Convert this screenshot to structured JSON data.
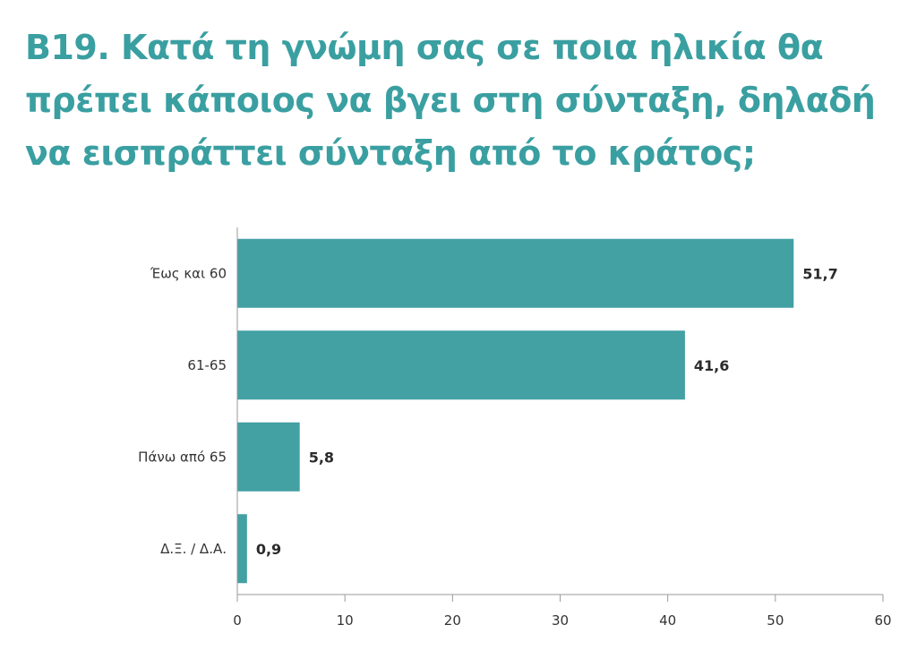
{
  "colors": {
    "title": "#3a9fa1",
    "bar": "#43a0a3",
    "axis": "#9a9a9a",
    "text": "#333333"
  },
  "chart_data": {
    "type": "bar",
    "orientation": "horizontal",
    "title_lines": [
      "B19. Κατά τη γνώμη σας σε ποια ηλικία θα",
      "πρέπει κάποιος να βγει στη σύνταξη, δηλαδή",
      "να εισπράττει σύνταξη από το κράτος;"
    ],
    "categories": [
      "Έως και 60",
      "61-65",
      "Πάνω από 65",
      "Δ.Ξ. / Δ.Α."
    ],
    "values": [
      51.7,
      41.6,
      5.8,
      0.9
    ],
    "value_labels": [
      "51,7",
      "41,6",
      "5,8",
      "0,9"
    ],
    "xlim": [
      0,
      60
    ],
    "xticks": [
      0,
      10,
      20,
      30,
      40,
      50,
      60
    ],
    "xtick_labels": [
      "0",
      "10",
      "20",
      "30",
      "40",
      "50",
      "60"
    ],
    "grid": false,
    "legend": "none"
  }
}
